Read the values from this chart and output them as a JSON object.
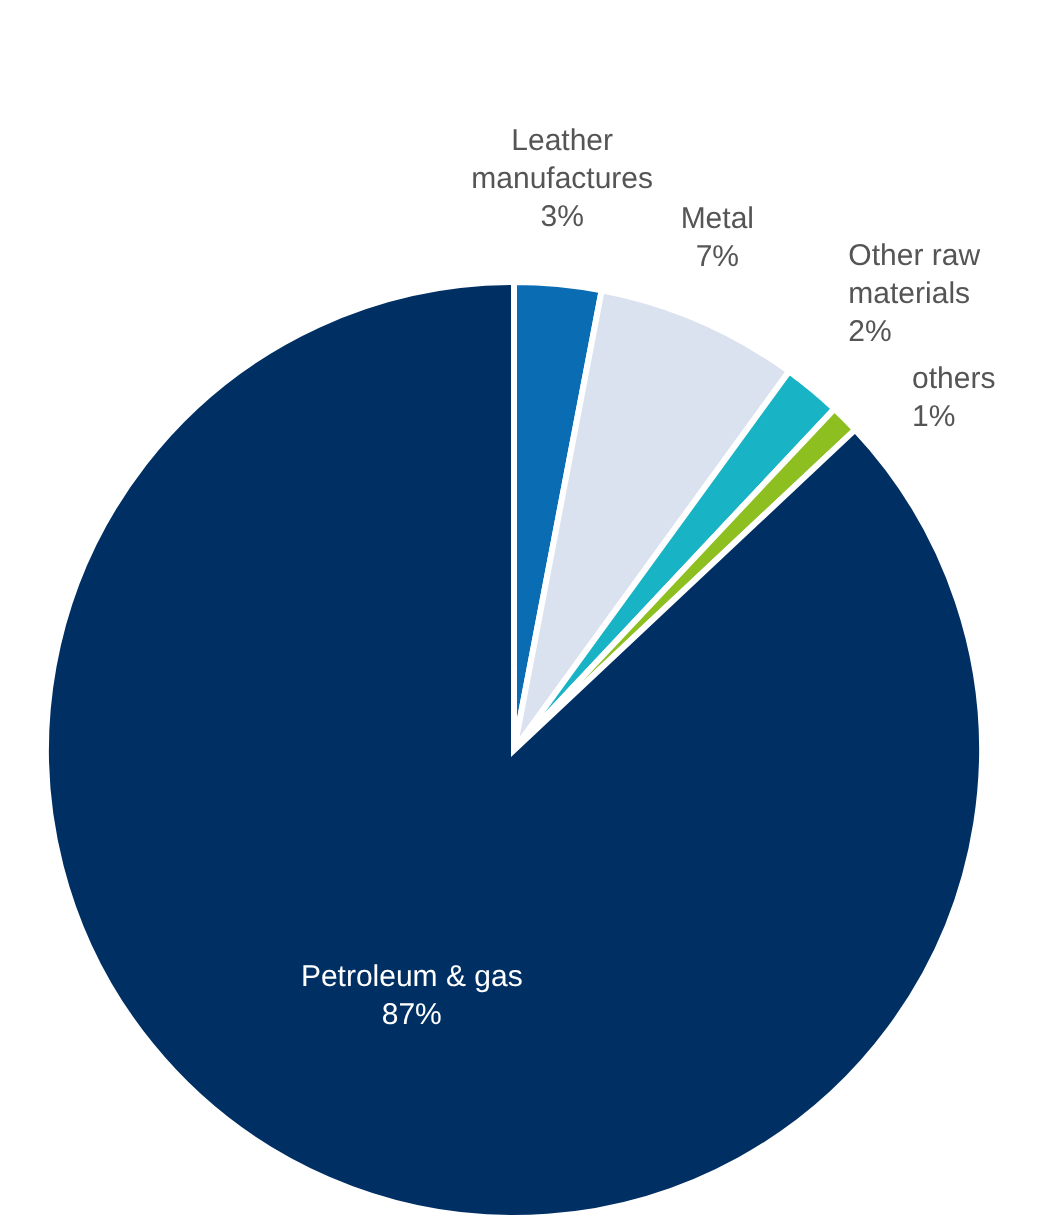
{
  "chart_data": {
    "type": "pie",
    "categories": [
      "Leather manufactures",
      "Metal",
      "Other raw materials",
      "others",
      "Petroleum & gas"
    ],
    "values": [
      3,
      7,
      2,
      1,
      87
    ],
    "value_labels": [
      "3%",
      "7%",
      "2%",
      "1%",
      "87%"
    ],
    "colors": [
      "#0a6cb3",
      "#dae2f0",
      "#19b3c6",
      "#8cbf1f",
      "#003063"
    ]
  }
}
